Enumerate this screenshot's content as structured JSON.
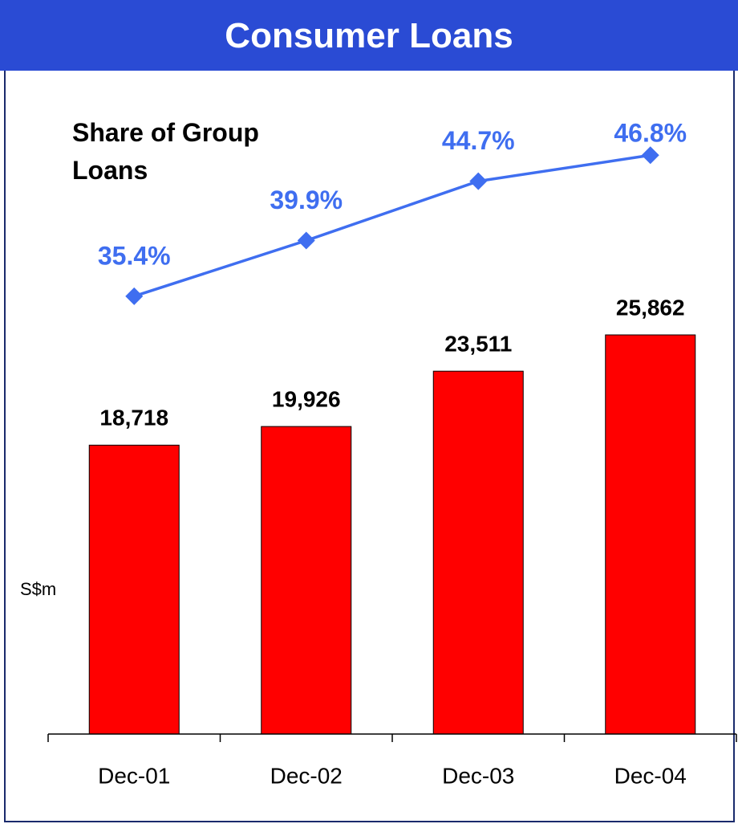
{
  "chart_data": {
    "type": "bar",
    "title": "Consumer Loans",
    "y_label": "S$m",
    "categories": [
      "Dec-01",
      "Dec-02",
      "Dec-03",
      "Dec-04"
    ],
    "values": [
      18718,
      19926,
      23511,
      25862
    ],
    "value_labels": [
      "18,718",
      "19,926",
      "23,511",
      "25,862"
    ],
    "color": "#ff0000",
    "line": {
      "name": "Share of Group Loans",
      "color": "#3f6ef0",
      "values": [
        35.4,
        39.9,
        44.7,
        46.8
      ],
      "value_labels": [
        "35.4%",
        "39.9%",
        "44.7%",
        "46.8%"
      ]
    }
  }
}
